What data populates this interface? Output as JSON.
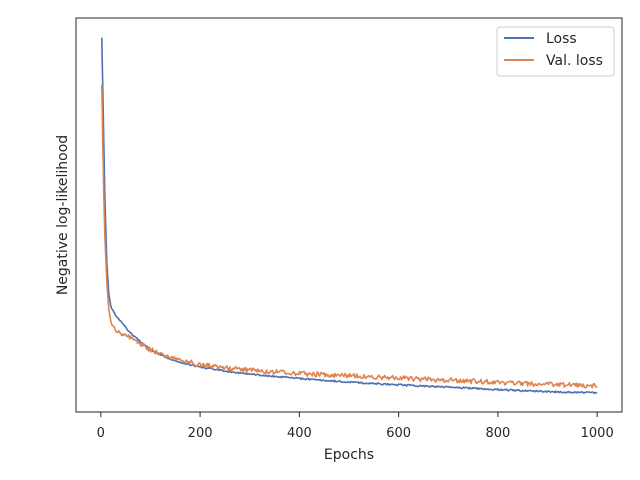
{
  "chart_data": {
    "type": "line",
    "xlabel": "Epochs",
    "ylabel": "Negative log-likelihood",
    "xlim": [
      -50,
      1050
    ],
    "ylim": [
      0,
      1
    ],
    "x_ticks": [
      0,
      200,
      400,
      600,
      800,
      1000
    ],
    "y_ticks_labeled": false,
    "grid": false,
    "legend_placement": "top-right",
    "series": [
      {
        "name": "Loss",
        "color": "#4c72b0",
        "x": [
          2,
          5,
          8,
          12,
          16,
          20,
          25,
          30,
          40,
          50,
          60,
          70,
          80,
          90,
          100,
          120,
          140,
          160,
          180,
          200,
          250,
          300,
          350,
          400,
          450,
          500,
          550,
          600,
          650,
          700,
          750,
          800,
          850,
          900,
          950,
          1000
        ],
        "y": [
          0.95,
          0.75,
          0.55,
          0.38,
          0.3,
          0.27,
          0.255,
          0.245,
          0.23,
          0.215,
          0.2,
          0.19,
          0.178,
          0.168,
          0.158,
          0.145,
          0.135,
          0.126,
          0.12,
          0.114,
          0.104,
          0.096,
          0.09,
          0.085,
          0.08,
          0.076,
          0.072,
          0.069,
          0.066,
          0.063,
          0.06,
          0.057,
          0.054,
          0.052,
          0.05,
          0.049
        ],
        "noise": 0.002
      },
      {
        "name": "Val. loss",
        "color": "#dd8452",
        "x": [
          2,
          5,
          8,
          12,
          16,
          20,
          25,
          30,
          40,
          50,
          60,
          70,
          80,
          90,
          100,
          120,
          140,
          160,
          180,
          200,
          250,
          300,
          350,
          400,
          450,
          500,
          550,
          600,
          650,
          700,
          750,
          800,
          850,
          900,
          950,
          1000
        ],
        "y": [
          0.83,
          0.6,
          0.45,
          0.33,
          0.26,
          0.232,
          0.218,
          0.21,
          0.2,
          0.195,
          0.188,
          0.18,
          0.172,
          0.165,
          0.158,
          0.148,
          0.14,
          0.132,
          0.126,
          0.12,
          0.112,
          0.106,
          0.102,
          0.098,
          0.094,
          0.092,
          0.089,
          0.086,
          0.083,
          0.081,
          0.078,
          0.075,
          0.072,
          0.07,
          0.068,
          0.066
        ],
        "noise": 0.006
      }
    ]
  }
}
